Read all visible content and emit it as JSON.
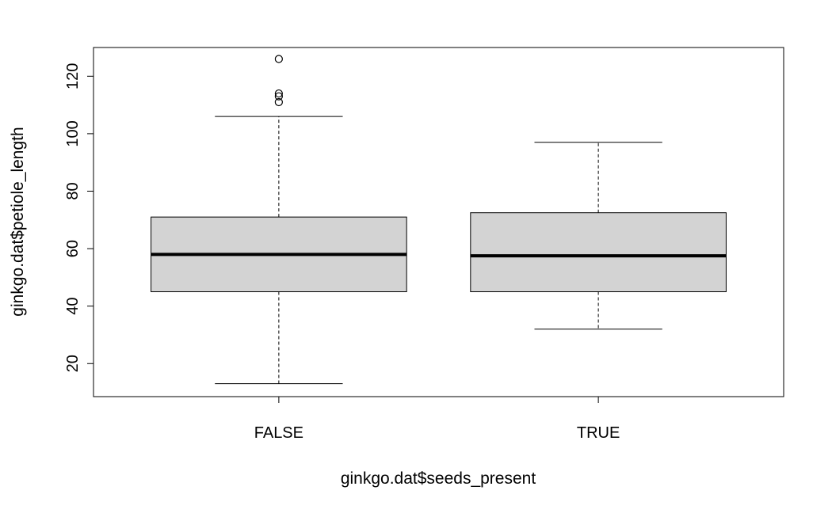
{
  "chart_data": {
    "type": "boxplot",
    "title": "",
    "xlabel": "ginkgo.dat$seeds_present",
    "ylabel": "ginkgo.dat$petiole_length",
    "ylim": [
      8.5,
      130
    ],
    "yticks": [
      20,
      40,
      60,
      80,
      100,
      120
    ],
    "grid": false,
    "legend": "none",
    "colors": {
      "box_fill": "#d3d3d3",
      "stroke": "#000000",
      "background": "#ffffff"
    },
    "categories": [
      "FALSE",
      "TRUE"
    ],
    "boxes": [
      {
        "label": "FALSE",
        "whisker_low": 13,
        "q1": 45,
        "median": 58,
        "q3": 71,
        "whisker_high": 106,
        "outliers": [
          111,
          113,
          114,
          126
        ]
      },
      {
        "label": "TRUE",
        "whisker_low": 32,
        "q1": 45,
        "median": 57.5,
        "q3": 72.5,
        "whisker_high": 97,
        "outliers": []
      }
    ]
  }
}
